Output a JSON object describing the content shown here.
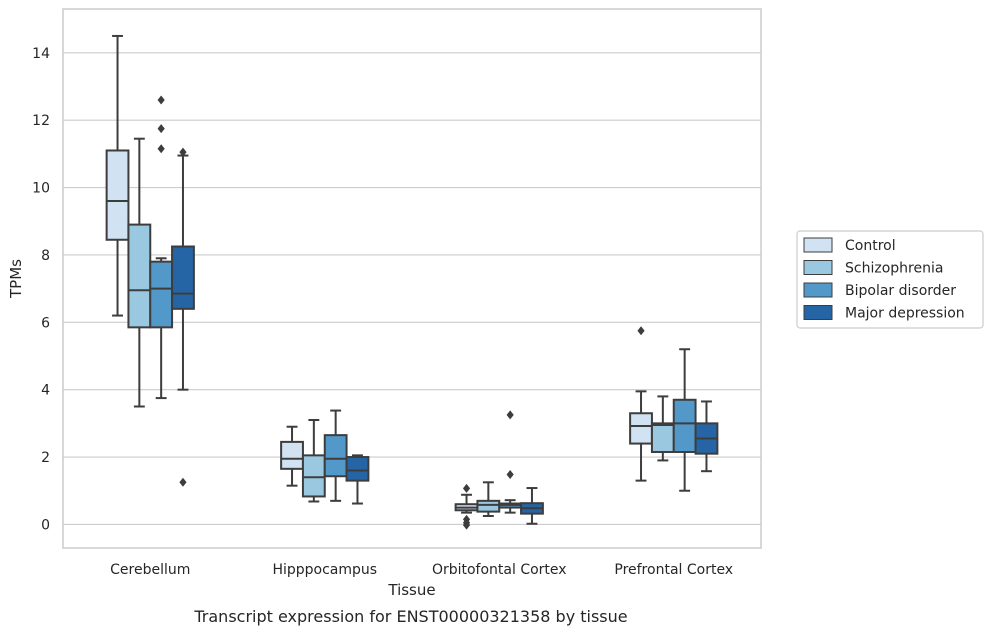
{
  "caption": "Transcript expression for ENST00000321358 by tissue",
  "chart_data": {
    "type": "box",
    "xlabel": "Tissue",
    "ylabel": "TPMs",
    "ylim": [
      -0.7,
      15.3
    ],
    "yticks": [
      0,
      2,
      4,
      6,
      8,
      10,
      12,
      14
    ],
    "grid": true,
    "legend_position": "right",
    "categories": [
      "Cerebellum",
      "Hipppocampus",
      "Orbitofontal Cortex",
      "Prefrontal Cortex"
    ],
    "series": [
      {
        "name": "Control",
        "color": "#d1e2f2",
        "boxes": [
          {
            "whislo": 6.2,
            "q1": 8.45,
            "med": 9.6,
            "q3": 11.1,
            "whishi": 14.5,
            "fliers": []
          },
          {
            "whislo": 1.15,
            "q1": 1.65,
            "med": 1.95,
            "q3": 2.45,
            "whishi": 2.9,
            "fliers": []
          },
          {
            "whislo": 0.35,
            "q1": 0.42,
            "med": 0.5,
            "q3": 0.6,
            "whishi": 0.88,
            "fliers": [
              1.07,
              0.15,
              0.05,
              -0.02
            ]
          },
          {
            "whislo": 1.3,
            "q1": 2.4,
            "med": 2.92,
            "q3": 3.3,
            "whishi": 3.95,
            "fliers": [
              5.75
            ]
          }
        ]
      },
      {
        "name": "Schizophrenia",
        "color": "#9ac8e0",
        "boxes": [
          {
            "whislo": 3.5,
            "q1": 5.85,
            "med": 6.95,
            "q3": 8.9,
            "whishi": 11.45,
            "fliers": []
          },
          {
            "whislo": 0.68,
            "q1": 0.83,
            "med": 1.4,
            "q3": 2.05,
            "whishi": 3.1,
            "fliers": []
          },
          {
            "whislo": 0.25,
            "q1": 0.38,
            "med": 0.58,
            "q3": 0.7,
            "whishi": 1.25,
            "fliers": []
          },
          {
            "whislo": 1.9,
            "q1": 2.15,
            "med": 2.95,
            "q3": 3.0,
            "whishi": 3.8,
            "fliers": []
          }
        ]
      },
      {
        "name": "Bipolar disorder",
        "color": "#5299c9",
        "boxes": [
          {
            "whislo": 3.75,
            "q1": 5.85,
            "med": 7.0,
            "q3": 7.8,
            "whishi": 7.9,
            "fliers": [
              12.6,
              11.75,
              11.15
            ]
          },
          {
            "whislo": 0.7,
            "q1": 1.43,
            "med": 1.95,
            "q3": 2.65,
            "whishi": 3.38,
            "fliers": []
          },
          {
            "whislo": 0.35,
            "q1": 0.5,
            "med": 0.58,
            "q3": 0.62,
            "whishi": 0.72,
            "fliers": [
              3.25,
              1.48
            ]
          },
          {
            "whislo": 1.0,
            "q1": 2.15,
            "med": 3.0,
            "q3": 3.7,
            "whishi": 5.2,
            "fliers": []
          }
        ]
      },
      {
        "name": "Major depression",
        "color": "#2565a6",
        "boxes": [
          {
            "whislo": 4.0,
            "q1": 6.4,
            "med": 6.85,
            "q3": 8.25,
            "whishi": 10.95,
            "fliers": [
              11.05,
              1.25
            ]
          },
          {
            "whislo": 0.62,
            "q1": 1.3,
            "med": 1.6,
            "q3": 2.0,
            "whishi": 2.05,
            "fliers": []
          },
          {
            "whislo": 0.02,
            "q1": 0.32,
            "med": 0.48,
            "q3": 0.63,
            "whishi": 1.08,
            "fliers": []
          },
          {
            "whislo": 1.58,
            "q1": 2.1,
            "med": 2.55,
            "q3": 3.0,
            "whishi": 3.65,
            "fliers": []
          }
        ]
      }
    ]
  }
}
